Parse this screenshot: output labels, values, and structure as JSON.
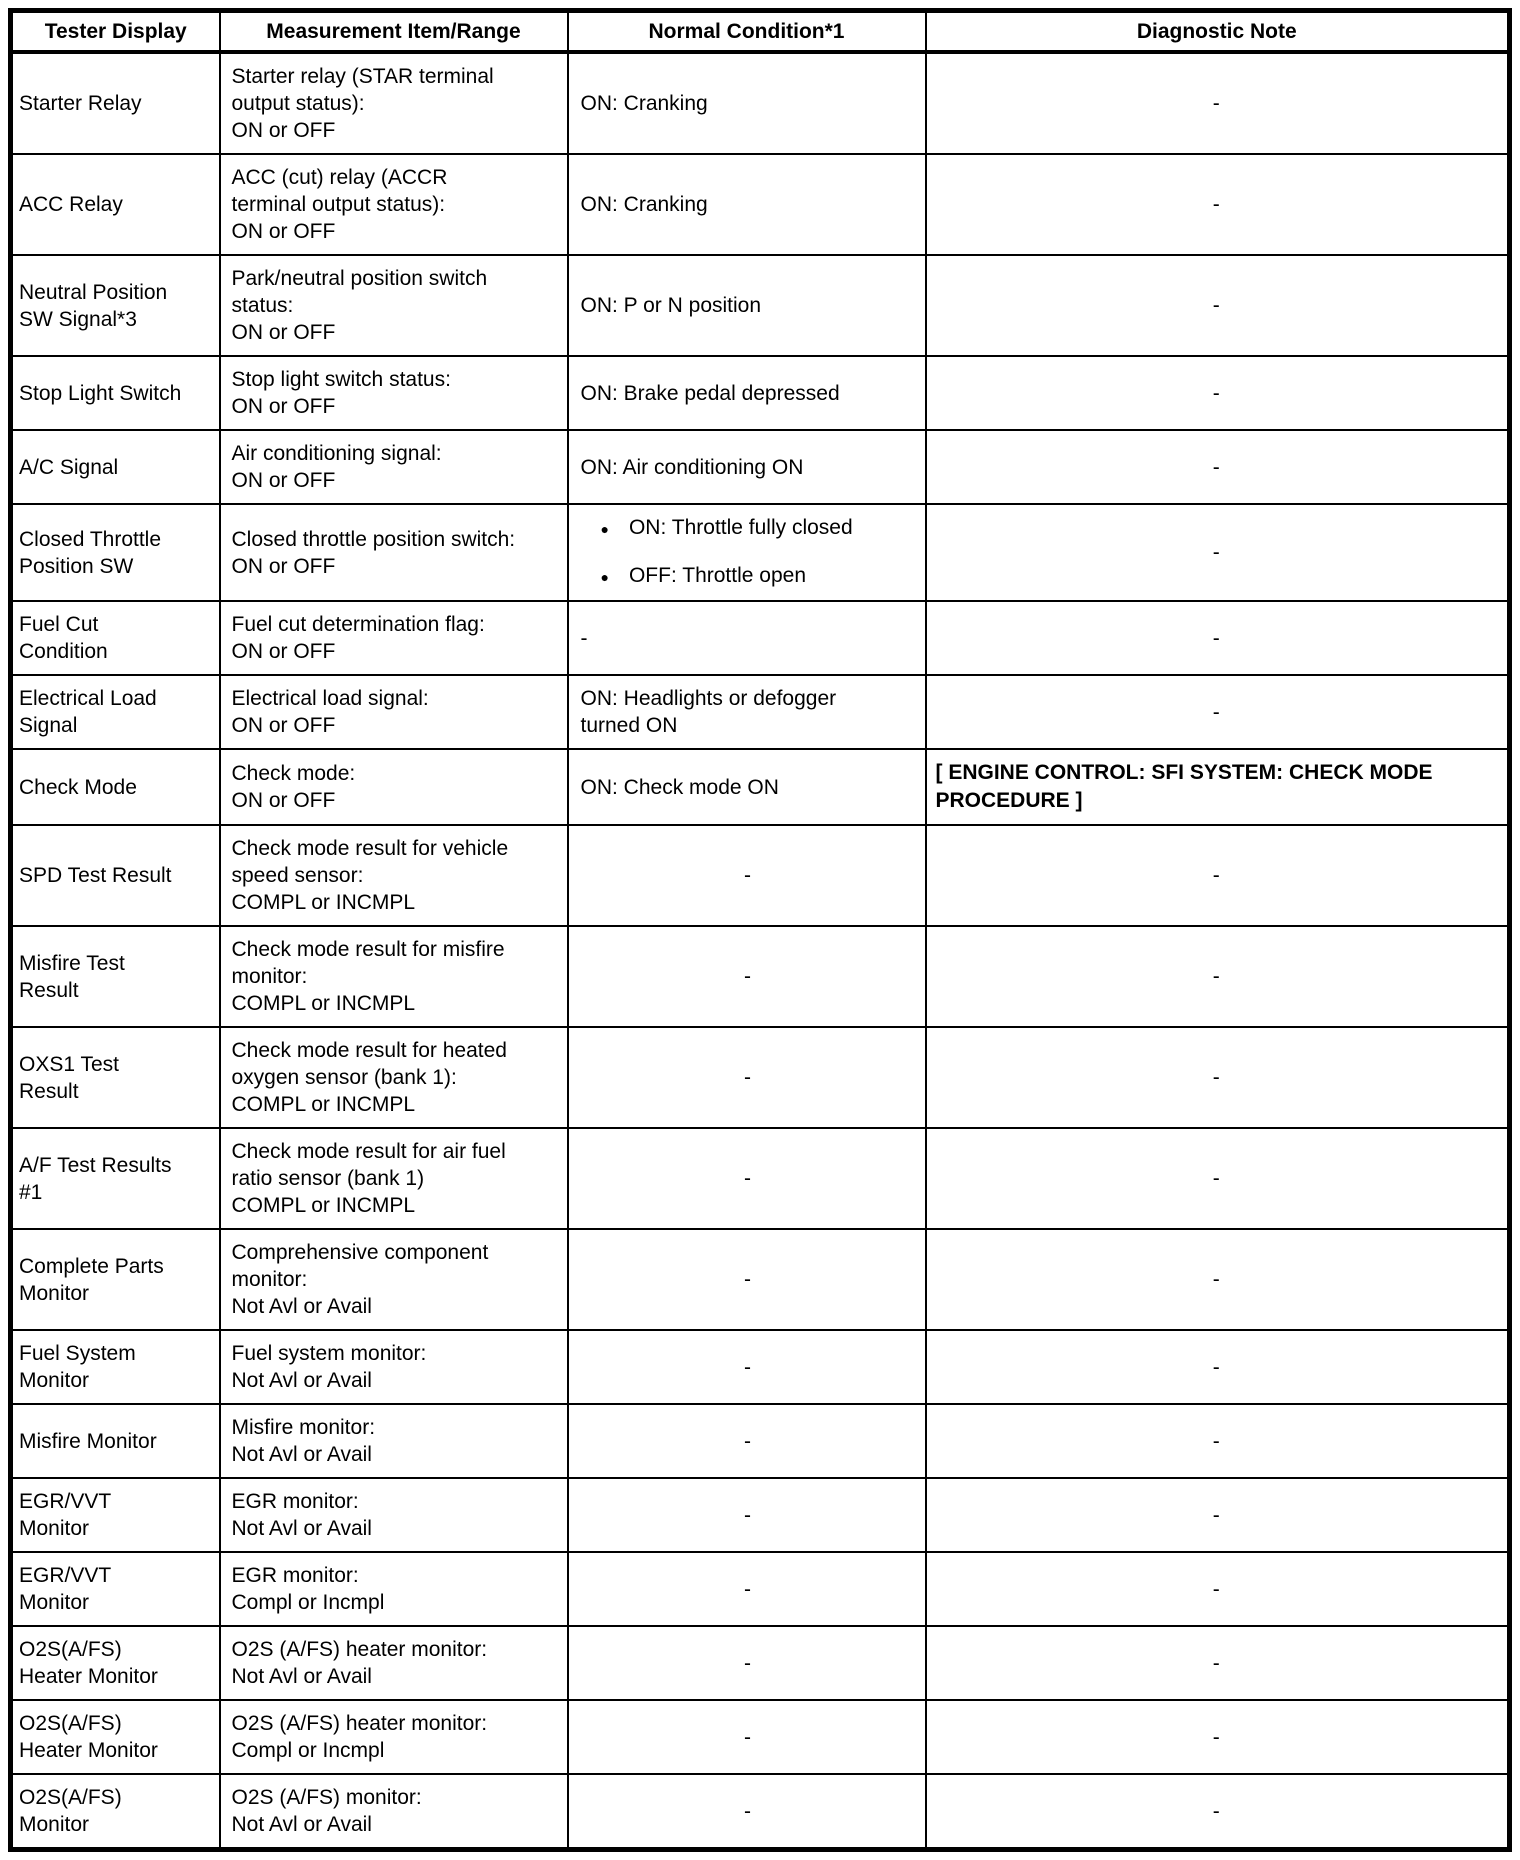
{
  "header": {
    "columns": [
      {
        "label": "Tester Display"
      },
      {
        "label": "Measurement Item/Range"
      },
      {
        "label": "Normal Condition*1"
      },
      {
        "label": "Diagnostic Note"
      }
    ]
  },
  "rows": [
    {
      "display": "Starter Relay",
      "item": "Starter relay (STAR terminal\noutput status):\nON or OFF",
      "normal": {
        "text": "ON: Cranking",
        "align": "left"
      },
      "note": {
        "text": "-",
        "align": "center",
        "bold": false
      }
    },
    {
      "display": "ACC Relay",
      "item": "ACC (cut) relay (ACCR\nterminal output status):\nON or OFF",
      "normal": {
        "text": "ON: Cranking",
        "align": "left"
      },
      "note": {
        "text": "-",
        "align": "center",
        "bold": false
      }
    },
    {
      "display": "Neutral Position\nSW Signal*3",
      "item": "Park/neutral position switch\nstatus:\nON or OFF",
      "normal": {
        "text": "ON: P or N position",
        "align": "left"
      },
      "note": {
        "text": "-",
        "align": "center",
        "bold": false
      }
    },
    {
      "display": "Stop Light Switch",
      "item": "Stop light switch status:\nON or OFF",
      "normal": {
        "text": "ON: Brake pedal depressed",
        "align": "left"
      },
      "note": {
        "text": "-",
        "align": "center",
        "bold": false
      }
    },
    {
      "display": "A/C Signal",
      "item": "Air conditioning signal:\nON or OFF",
      "normal": {
        "text": "ON: Air conditioning ON",
        "align": "left"
      },
      "note": {
        "text": "-",
        "align": "center",
        "bold": false
      }
    },
    {
      "display": "Closed Throttle\nPosition SW",
      "item": "Closed throttle position switch:\nON or OFF",
      "normal": {
        "bullets": [
          "ON: Throttle fully closed",
          "OFF: Throttle open"
        ],
        "align": "left"
      },
      "note": {
        "text": "-",
        "align": "center",
        "bold": false
      }
    },
    {
      "display": "Fuel Cut\nCondition",
      "item": "Fuel cut determination flag:\nON or OFF",
      "normal": {
        "text": "-",
        "align": "left"
      },
      "note": {
        "text": "-",
        "align": "center",
        "bold": false
      }
    },
    {
      "display": "Electrical Load\nSignal",
      "item": "Electrical load signal:\nON or OFF",
      "normal": {
        "text": "ON: Headlights or defogger\nturned ON",
        "align": "left"
      },
      "note": {
        "text": "-",
        "align": "center",
        "bold": false
      }
    },
    {
      "display": "Check Mode",
      "item": "Check mode:\nON or OFF",
      "normal": {
        "text": "ON: Check mode ON",
        "align": "left"
      },
      "note": {
        "text": "[ ENGINE CONTROL: SFI SYSTEM: CHECK MODE PROCEDURE ]",
        "align": "left",
        "bold": true
      }
    },
    {
      "display": "SPD Test Result",
      "item": "Check mode result for vehicle\nspeed sensor:\nCOMPL or INCMPL",
      "normal": {
        "text": "-",
        "align": "center"
      },
      "note": {
        "text": "-",
        "align": "center",
        "bold": false
      }
    },
    {
      "display": "Misfire Test\nResult",
      "item": "Check mode result for misfire\nmonitor:\nCOMPL or INCMPL",
      "normal": {
        "text": "-",
        "align": "center"
      },
      "note": {
        "text": "-",
        "align": "center",
        "bold": false
      }
    },
    {
      "display": "OXS1 Test\nResult",
      "item": "Check mode result for heated\noxygen sensor (bank 1):\nCOMPL or INCMPL",
      "normal": {
        "text": "-",
        "align": "center"
      },
      "note": {
        "text": "-",
        "align": "center",
        "bold": false
      }
    },
    {
      "display": "A/F Test Results\n#1",
      "item": "Check mode result for air fuel\nratio sensor (bank 1)\nCOMPL or INCMPL",
      "normal": {
        "text": "-",
        "align": "center"
      },
      "note": {
        "text": "-",
        "align": "center",
        "bold": false
      }
    },
    {
      "display": "Complete Parts\nMonitor",
      "item": "Comprehensive component\nmonitor:\nNot Avl or Avail",
      "normal": {
        "text": "-",
        "align": "center"
      },
      "note": {
        "text": "-",
        "align": "center",
        "bold": false
      }
    },
    {
      "display": "Fuel System\nMonitor",
      "item": "Fuel system monitor:\nNot Avl or Avail",
      "normal": {
        "text": "-",
        "align": "center"
      },
      "note": {
        "text": "-",
        "align": "center",
        "bold": false
      }
    },
    {
      "display": "Misfire Monitor",
      "item": "Misfire monitor:\nNot Avl or Avail",
      "normal": {
        "text": "-",
        "align": "center"
      },
      "note": {
        "text": "-",
        "align": "center",
        "bold": false
      }
    },
    {
      "display": "EGR/VVT\nMonitor",
      "item": "EGR monitor:\nNot Avl or Avail",
      "normal": {
        "text": "-",
        "align": "center"
      },
      "note": {
        "text": "-",
        "align": "center",
        "bold": false
      }
    },
    {
      "display": "EGR/VVT\nMonitor",
      "item": "EGR monitor:\nCompl or Incmpl",
      "normal": {
        "text": "-",
        "align": "center"
      },
      "note": {
        "text": "-",
        "align": "center",
        "bold": false
      }
    },
    {
      "display": "O2S(A/FS)\nHeater Monitor",
      "item": "O2S (A/FS) heater monitor:\nNot Avl or Avail",
      "normal": {
        "text": "-",
        "align": "center"
      },
      "note": {
        "text": "-",
        "align": "center",
        "bold": false
      }
    },
    {
      "display": "O2S(A/FS)\nHeater Monitor",
      "item": "O2S (A/FS) heater monitor:\nCompl or Incmpl",
      "normal": {
        "text": "-",
        "align": "center"
      },
      "note": {
        "text": "-",
        "align": "center",
        "bold": false
      }
    },
    {
      "display": "O2S(A/FS)\nMonitor",
      "item": "O2S (A/FS) monitor:\nNot Avl or Avail",
      "normal": {
        "text": "-",
        "align": "center"
      },
      "note": {
        "text": "-",
        "align": "center",
        "bold": false
      }
    }
  ]
}
